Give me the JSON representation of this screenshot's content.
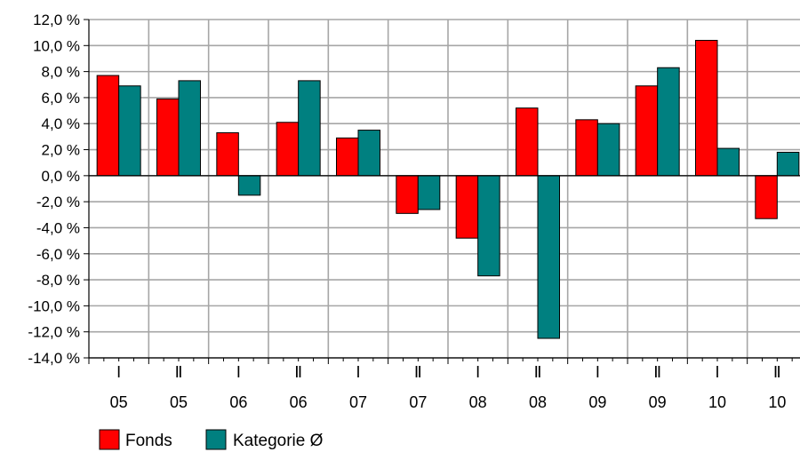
{
  "chart_data": {
    "type": "bar",
    "title": "",
    "xlabel": "",
    "ylabel": "",
    "ylim": [
      -14,
      12
    ],
    "ytick_step": 2,
    "yticks": [
      "12,0 %",
      "10,0 %",
      "8,0 %",
      "6,0 %",
      "4,0 %",
      "2,0 %",
      "0,0 %",
      "-2,0 %",
      "-4,0 %",
      "-6,0 %",
      "-8,0 %",
      "-10,0 %",
      "-12,0 %",
      "-14,0 %"
    ],
    "grid": true,
    "legend_position": "bottom-left",
    "categories": [
      {
        "half": "I",
        "year": "05"
      },
      {
        "half": "Ⅱ",
        "year": "05"
      },
      {
        "half": "I",
        "year": "06"
      },
      {
        "half": "Ⅱ",
        "year": "06"
      },
      {
        "half": "I",
        "year": "07"
      },
      {
        "half": "Ⅱ",
        "year": "07"
      },
      {
        "half": "I",
        "year": "08"
      },
      {
        "half": "Ⅱ",
        "year": "08"
      },
      {
        "half": "I",
        "year": "09"
      },
      {
        "half": "Ⅱ",
        "year": "09"
      },
      {
        "half": "I",
        "year": "10"
      },
      {
        "half": "Ⅱ",
        "year": "10"
      }
    ],
    "series": [
      {
        "name": "Fonds",
        "color": "#ff0000",
        "values": [
          7.7,
          5.9,
          3.3,
          4.1,
          2.9,
          -2.9,
          -4.8,
          5.2,
          4.3,
          6.9,
          10.4,
          -3.3
        ]
      },
      {
        "name": "Kategorie Ø",
        "color": "#008080",
        "values": [
          6.9,
          7.3,
          -1.5,
          7.3,
          3.5,
          -2.6,
          -7.7,
          -12.5,
          4.0,
          8.3,
          2.1,
          1.8
        ]
      }
    ]
  }
}
